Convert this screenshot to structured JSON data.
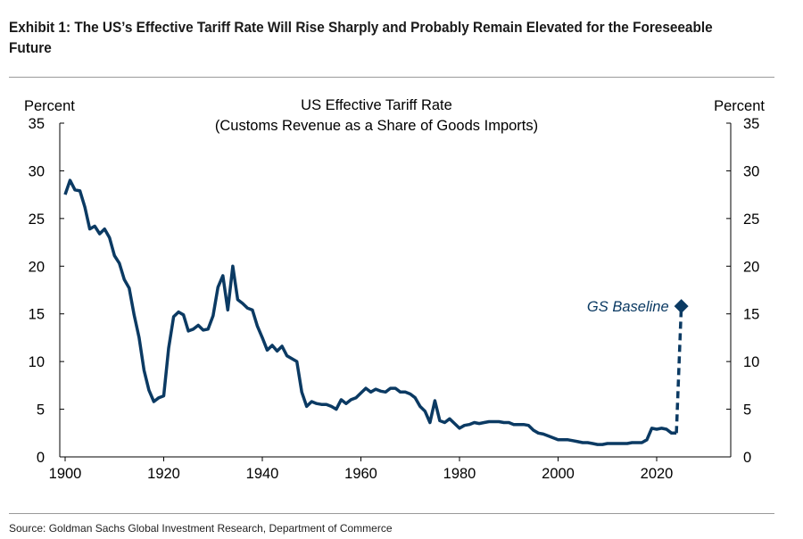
{
  "exhibit_title": "Exhibit 1: The US’s Effective Tariff Rate Will Rise Sharply and Probably Remain Elevated for the Foreseeable Future",
  "source": "Source: Goldman Sachs Global Investment Research, Department of Commerce",
  "colors": {
    "series": "#0b3a63",
    "axis": "#000000",
    "rule": "#9a9a9a"
  },
  "chart_data": {
    "type": "line",
    "title": "US Effective Tariff Rate",
    "subtitle": "(Customs Revenue as a Share of Goods Imports)",
    "ylabel_left": "Percent",
    "ylabel_right": "Percent",
    "xlabel": "",
    "xlim": [
      1900,
      2030
    ],
    "ylim": [
      0,
      35
    ],
    "x_ticks": [
      1900,
      1920,
      1940,
      1960,
      1980,
      2000,
      2020
    ],
    "y_ticks": [
      0,
      5,
      10,
      15,
      20,
      25,
      30,
      35
    ],
    "grid": false,
    "series": [
      {
        "name": "US Effective Tariff Rate",
        "style": "solid",
        "points": [
          [
            1900,
            27.5
          ],
          [
            1901,
            29.0
          ],
          [
            1902,
            28.0
          ],
          [
            1903,
            27.9
          ],
          [
            1904,
            26.2
          ],
          [
            1905,
            23.9
          ],
          [
            1906,
            24.2
          ],
          [
            1907,
            23.4
          ],
          [
            1908,
            23.9
          ],
          [
            1909,
            23.0
          ],
          [
            1910,
            21.1
          ],
          [
            1911,
            20.3
          ],
          [
            1912,
            18.6
          ],
          [
            1913,
            17.7
          ],
          [
            1914,
            14.9
          ],
          [
            1915,
            12.5
          ],
          [
            1916,
            9.1
          ],
          [
            1917,
            7.0
          ],
          [
            1918,
            5.8
          ],
          [
            1919,
            6.2
          ],
          [
            1920,
            6.4
          ],
          [
            1921,
            11.4
          ],
          [
            1922,
            14.7
          ],
          [
            1923,
            15.2
          ],
          [
            1924,
            14.9
          ],
          [
            1925,
            13.2
          ],
          [
            1926,
            13.4
          ],
          [
            1927,
            13.8
          ],
          [
            1928,
            13.3
          ],
          [
            1929,
            13.4
          ],
          [
            1930,
            14.8
          ],
          [
            1931,
            17.8
          ],
          [
            1932,
            19.0
          ],
          [
            1933,
            15.4
          ],
          [
            1934,
            20.0
          ],
          [
            1935,
            16.5
          ],
          [
            1936,
            16.1
          ],
          [
            1937,
            15.6
          ],
          [
            1938,
            15.4
          ],
          [
            1939,
            13.7
          ],
          [
            1940,
            12.5
          ],
          [
            1941,
            11.2
          ],
          [
            1942,
            11.7
          ],
          [
            1943,
            11.1
          ],
          [
            1944,
            11.6
          ],
          [
            1945,
            10.6
          ],
          [
            1946,
            10.3
          ],
          [
            1947,
            10.0
          ],
          [
            1948,
            6.8
          ],
          [
            1949,
            5.3
          ],
          [
            1950,
            5.8
          ],
          [
            1951,
            5.6
          ],
          [
            1952,
            5.5
          ],
          [
            1953,
            5.5
          ],
          [
            1954,
            5.3
          ],
          [
            1955,
            5.0
          ],
          [
            1956,
            6.0
          ],
          [
            1957,
            5.6
          ],
          [
            1958,
            6.0
          ],
          [
            1959,
            6.2
          ],
          [
            1960,
            6.7
          ],
          [
            1961,
            7.2
          ],
          [
            1962,
            6.8
          ],
          [
            1963,
            7.1
          ],
          [
            1964,
            6.9
          ],
          [
            1965,
            6.8
          ],
          [
            1966,
            7.2
          ],
          [
            1967,
            7.2
          ],
          [
            1968,
            6.8
          ],
          [
            1969,
            6.8
          ],
          [
            1970,
            6.6
          ],
          [
            1971,
            6.2
          ],
          [
            1972,
            5.3
          ],
          [
            1973,
            4.8
          ],
          [
            1974,
            3.6
          ],
          [
            1975,
            5.9
          ],
          [
            1976,
            3.8
          ],
          [
            1977,
            3.6
          ],
          [
            1978,
            4.0
          ],
          [
            1979,
            3.5
          ],
          [
            1980,
            3.0
          ],
          [
            1981,
            3.3
          ],
          [
            1982,
            3.4
          ],
          [
            1983,
            3.6
          ],
          [
            1984,
            3.5
          ],
          [
            1985,
            3.6
          ],
          [
            1986,
            3.7
          ],
          [
            1987,
            3.7
          ],
          [
            1988,
            3.7
          ],
          [
            1989,
            3.6
          ],
          [
            1990,
            3.6
          ],
          [
            1991,
            3.4
          ],
          [
            1992,
            3.4
          ],
          [
            1993,
            3.4
          ],
          [
            1994,
            3.3
          ],
          [
            1995,
            2.8
          ],
          [
            1996,
            2.5
          ],
          [
            1997,
            2.4
          ],
          [
            1998,
            2.2
          ],
          [
            1999,
            2.0
          ],
          [
            2000,
            1.8
          ],
          [
            2001,
            1.8
          ],
          [
            2002,
            1.8
          ],
          [
            2003,
            1.7
          ],
          [
            2004,
            1.6
          ],
          [
            2005,
            1.5
          ],
          [
            2006,
            1.5
          ],
          [
            2007,
            1.4
          ],
          [
            2008,
            1.3
          ],
          [
            2009,
            1.3
          ],
          [
            2010,
            1.4
          ],
          [
            2011,
            1.4
          ],
          [
            2012,
            1.4
          ],
          [
            2013,
            1.4
          ],
          [
            2014,
            1.4
          ],
          [
            2015,
            1.5
          ],
          [
            2016,
            1.5
          ],
          [
            2017,
            1.5
          ],
          [
            2018,
            1.8
          ],
          [
            2019,
            3.0
          ],
          [
            2020,
            2.9
          ],
          [
            2021,
            3.0
          ],
          [
            2022,
            2.9
          ],
          [
            2023,
            2.5
          ],
          [
            2024,
            2.5
          ]
        ]
      },
      {
        "name": "GS Baseline projection",
        "style": "dashed",
        "points": [
          [
            2024,
            2.5
          ],
          [
            2025,
            15.8
          ]
        ]
      }
    ],
    "annotations": [
      {
        "text": "GS Baseline",
        "x": 2025,
        "y": 15.8,
        "marker": "diamond",
        "placement": "left"
      }
    ]
  }
}
